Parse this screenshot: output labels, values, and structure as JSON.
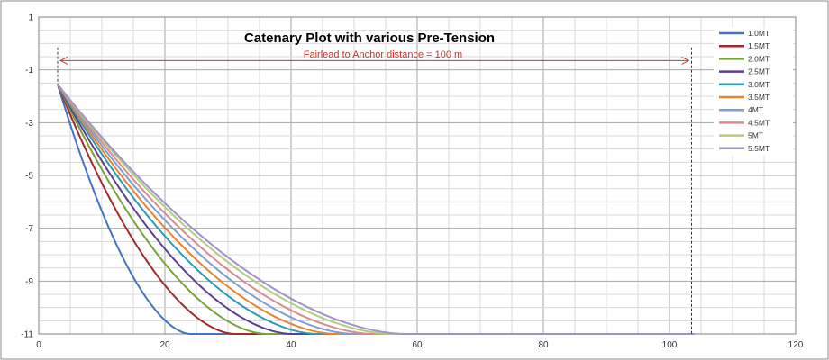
{
  "chart_data": {
    "type": "line",
    "title": "Catenary Plot with various Pre-Tension",
    "annotation": "Fairlead to Anchor distance = 100 m",
    "xlim": [
      0,
      120
    ],
    "ylim": [
      -11,
      1
    ],
    "xticks": [
      0,
      20,
      40,
      60,
      80,
      100,
      120
    ],
    "yticks": [
      1,
      -1,
      -3,
      -5,
      -7,
      -9,
      -11
    ],
    "grid": true,
    "legend_position": "right",
    "fairlead": {
      "x": 3,
      "y": -1.55
    },
    "anchor_line_x": 103.5,
    "seabed_y": -11,
    "series": [
      {
        "name": "1.0MT",
        "color": "#4472c4",
        "touchdown_x": 24
      },
      {
        "name": "1.5MT",
        "color": "#a02b2b",
        "touchdown_x": 31
      },
      {
        "name": "2.0MT",
        "color": "#7aa23b",
        "touchdown_x": 36
      },
      {
        "name": "2.5MT",
        "color": "#5e3f8f",
        "touchdown_x": 40
      },
      {
        "name": "3.0MT",
        "color": "#2e9bb0",
        "touchdown_x": 44
      },
      {
        "name": "3.5MT",
        "color": "#e6852e",
        "touchdown_x": 47
      },
      {
        "name": "4MT",
        "color": "#7f9fcf",
        "touchdown_x": 50
      },
      {
        "name": "4.5MT",
        "color": "#d98c8c",
        "touchdown_x": 53
      },
      {
        "name": "5MT",
        "color": "#b3cc80",
        "touchdown_x": 56
      },
      {
        "name": "5.5MT",
        "color": "#a192c7",
        "touchdown_x": 58
      }
    ],
    "seabed_extent_x": 104
  }
}
